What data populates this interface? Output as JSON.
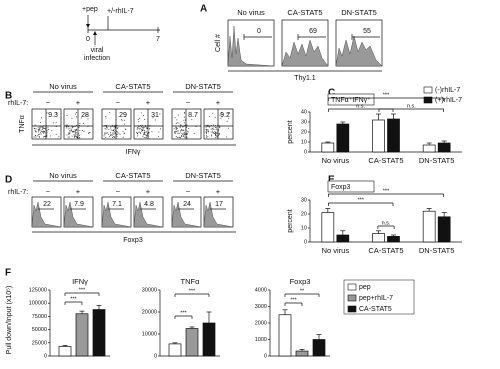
{
  "timeline": {
    "pep": "+pep",
    "day0": "0",
    "rhil7": "+/-rhIL-7",
    "day7": "7",
    "infection": [
      "viral",
      "infection"
    ]
  },
  "panel_a": {
    "label": "A",
    "columns": [
      "No virus",
      "CA-STAT5",
      "DN-STAT5"
    ],
    "gates": [
      "0",
      "69",
      "55"
    ],
    "y_label": "Cell #",
    "x_label": "Thy1.1"
  },
  "panel_b": {
    "label": "B",
    "columns": [
      "No virus",
      "CA-STAT5",
      "DN-STAT5"
    ],
    "treatment_label": "rhIL-7:",
    "signs": [
      "−",
      "+"
    ],
    "gates": [
      "9.3",
      "28",
      "29",
      "31",
      "8.7",
      "9.2"
    ],
    "y_label": "TNFα",
    "x_label": "IFNγ"
  },
  "panel_d": {
    "label": "D",
    "columns": [
      "No virus",
      "CA-STAT5",
      "DN-STAT5"
    ],
    "treatment_label": "rhIL-7:",
    "signs": [
      "−",
      "+"
    ],
    "gates": [
      "22",
      "7.9",
      "7.1",
      "4.8",
      "24",
      "17"
    ],
    "x_label": "Foxp3"
  },
  "chart_data": [
    {
      "type": "bar",
      "panel": "C",
      "title": "TNFα⁺IFNγ⁺",
      "ylabel": "percent",
      "categories": [
        "No virus",
        "CA-STAT5",
        "DN-STAT5"
      ],
      "series": [
        {
          "name": "(-)rhIL-7",
          "color": "#ffffff",
          "values": [
            9,
            32,
            7
          ],
          "errors": [
            1,
            6,
            2
          ]
        },
        {
          "name": "(+)rhIL-7",
          "color": "#111111",
          "values": [
            28,
            33,
            9
          ],
          "errors": [
            2,
            5,
            2
          ]
        }
      ],
      "ylim": [
        0,
        40
      ],
      "yticks": [
        0,
        10,
        20,
        30,
        40
      ],
      "annotations": [
        "n.s.",
        "n.s.",
        "***"
      ]
    },
    {
      "type": "bar",
      "panel": "E",
      "title": "Foxp3",
      "ylabel": "percent",
      "categories": [
        "No virus",
        "CA-STAT5",
        "DN-STAT5"
      ],
      "series": [
        {
          "name": "(-)rhIL-7",
          "color": "#ffffff",
          "values": [
            21,
            6,
            22
          ],
          "errors": [
            3,
            2,
            2
          ]
        },
        {
          "name": "(+)rhIL-7",
          "color": "#111111",
          "values": [
            5,
            4,
            18
          ],
          "errors": [
            3,
            1,
            3
          ]
        }
      ],
      "ylim": [
        0,
        30
      ],
      "yticks": [
        0,
        10,
        20,
        30
      ],
      "annotations": [
        "***",
        "n.s.",
        "***"
      ]
    },
    {
      "type": "bar-panels",
      "panel": "F",
      "ylabel": "Pull down/Input (x10⁵)",
      "series": [
        {
          "name": "pep",
          "color": "#ffffff"
        },
        {
          "name": "pep+rhIL-7",
          "color": "#999999"
        },
        {
          "name": "CA-STAT5",
          "color": "#111111"
        }
      ],
      "subplots": [
        {
          "title": "IFNγ",
          "values": [
            18000,
            80000,
            88000
          ],
          "errors": [
            2000,
            5000,
            8000
          ],
          "ylim": [
            0,
            125000
          ],
          "yticks": [
            0,
            25000,
            50000,
            75000,
            100000,
            125000
          ],
          "annotations": [
            "***",
            "***"
          ]
        },
        {
          "title": "TNFα",
          "values": [
            5500,
            12500,
            15000
          ],
          "errors": [
            500,
            700,
            5000
          ],
          "ylim": [
            0,
            30000
          ],
          "yticks": [
            0,
            10000,
            20000,
            30000
          ],
          "annotations": [
            "***",
            "***"
          ]
        },
        {
          "title": "Foxp3",
          "values": [
            2500,
            300,
            1000
          ],
          "errors": [
            300,
            100,
            300
          ],
          "ylim": [
            0,
            4000
          ],
          "yticks": [
            0,
            1000,
            2000,
            3000,
            4000
          ],
          "annotations": [
            "**",
            "***"
          ]
        }
      ]
    }
  ]
}
